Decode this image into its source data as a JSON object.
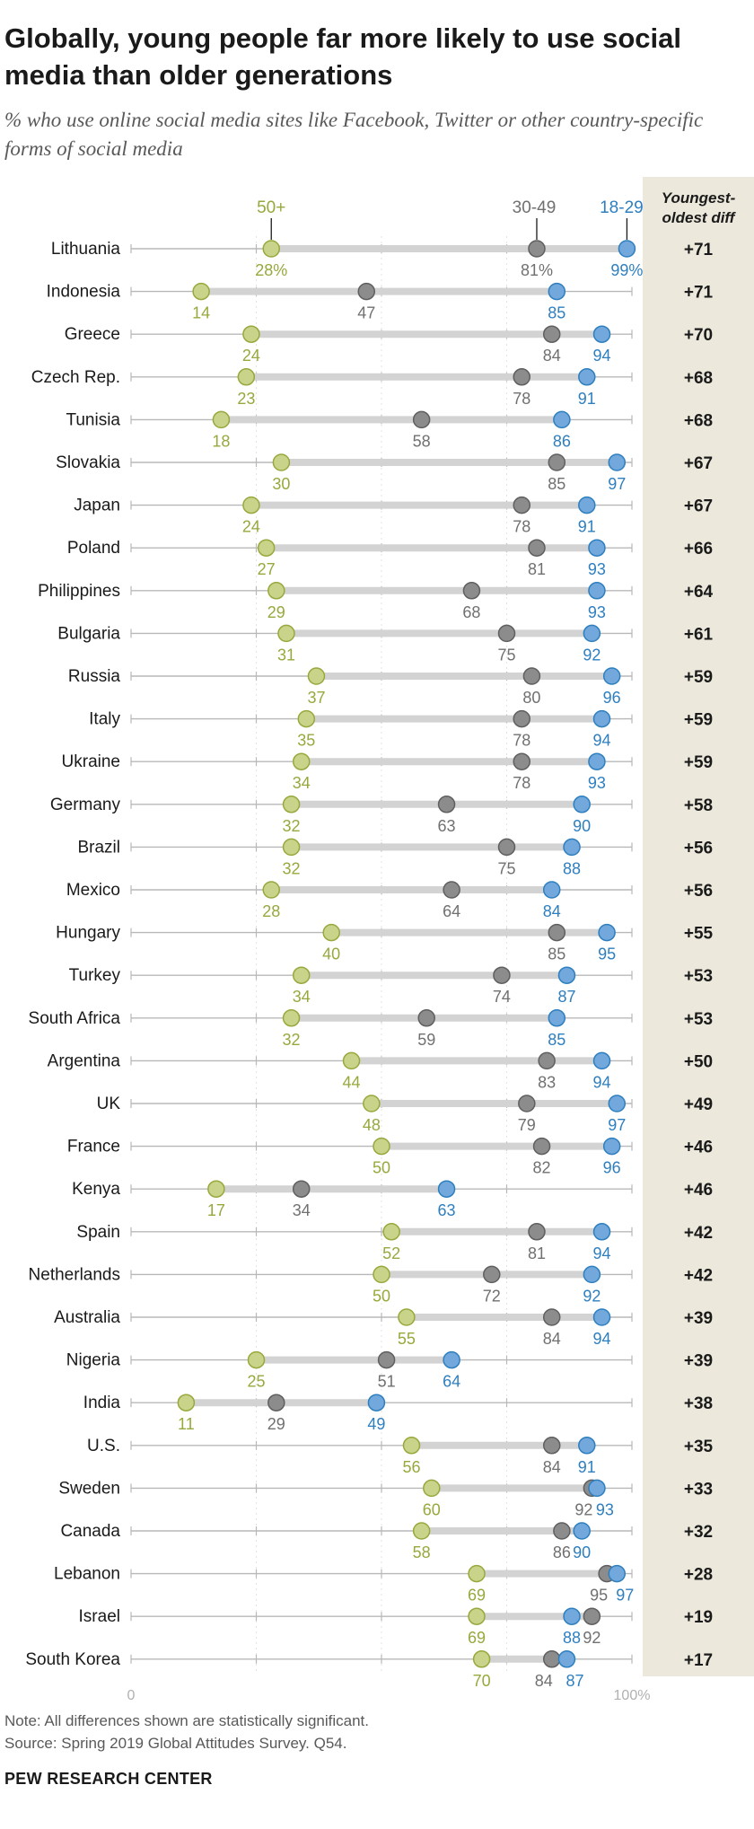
{
  "title": "Globally, young people far more likely to use social media than older generations",
  "subtitle": "% who use online social media sites like Facebook, Twitter or other country-specific forms of social media",
  "note": "Note: All differences shown are statistically significant.",
  "source": "Source: Spring 2019 Global Attitudes Survey. Q54.",
  "org": "PEW RESEARCH CENTER",
  "colors": {
    "age_50plus": "#c9d48a",
    "age_30_49": "#8c8c8c",
    "age_18_29": "#72a8dc",
    "age_50plus_text": "#98a83c",
    "age_30_49_text": "#707070",
    "age_18_29_text": "#2e7fbf",
    "diff_panel": "#ece9dc"
  },
  "chart_data": {
    "type": "dot",
    "xlim": [
      0,
      100
    ],
    "x_tick_labels": {
      "min": "0",
      "max": "100%"
    },
    "diff_header": "Youngest-oldest diff",
    "diff_header_lines": [
      "Youngest-",
      "oldest diff"
    ],
    "series": [
      {
        "name": "50+",
        "key": "age_50plus"
      },
      {
        "name": "30-49",
        "key": "age_30_49"
      },
      {
        "name": "18-29",
        "key": "age_18_29"
      }
    ],
    "first_row_value_labels": {
      "age_50plus": "28%",
      "age_30_49": "81%",
      "age_18_29": "99%"
    },
    "rows": [
      {
        "country": "Lithuania",
        "age_50plus": 28,
        "age_30_49": 81,
        "age_18_29": 99,
        "diff": "+71"
      },
      {
        "country": "Indonesia",
        "age_50plus": 14,
        "age_30_49": 47,
        "age_18_29": 85,
        "diff": "+71"
      },
      {
        "country": "Greece",
        "age_50plus": 24,
        "age_30_49": 84,
        "age_18_29": 94,
        "diff": "+70"
      },
      {
        "country": "Czech Rep.",
        "age_50plus": 23,
        "age_30_49": 78,
        "age_18_29": 91,
        "diff": "+68"
      },
      {
        "country": "Tunisia",
        "age_50plus": 18,
        "age_30_49": 58,
        "age_18_29": 86,
        "diff": "+68"
      },
      {
        "country": "Slovakia",
        "age_50plus": 30,
        "age_30_49": 85,
        "age_18_29": 97,
        "diff": "+67"
      },
      {
        "country": "Japan",
        "age_50plus": 24,
        "age_30_49": 78,
        "age_18_29": 91,
        "diff": "+67"
      },
      {
        "country": "Poland",
        "age_50plus": 27,
        "age_30_49": 81,
        "age_18_29": 93,
        "diff": "+66"
      },
      {
        "country": "Philippines",
        "age_50plus": 29,
        "age_30_49": 68,
        "age_18_29": 93,
        "diff": "+64"
      },
      {
        "country": "Bulgaria",
        "age_50plus": 31,
        "age_30_49": 75,
        "age_18_29": 92,
        "diff": "+61"
      },
      {
        "country": "Russia",
        "age_50plus": 37,
        "age_30_49": 80,
        "age_18_29": 96,
        "diff": "+59"
      },
      {
        "country": "Italy",
        "age_50plus": 35,
        "age_30_49": 78,
        "age_18_29": 94,
        "diff": "+59"
      },
      {
        "country": "Ukraine",
        "age_50plus": 34,
        "age_30_49": 78,
        "age_18_29": 93,
        "diff": "+59"
      },
      {
        "country": "Germany",
        "age_50plus": 32,
        "age_30_49": 63,
        "age_18_29": 90,
        "diff": "+58"
      },
      {
        "country": "Brazil",
        "age_50plus": 32,
        "age_30_49": 75,
        "age_18_29": 88,
        "diff": "+56"
      },
      {
        "country": "Mexico",
        "age_50plus": 28,
        "age_30_49": 64,
        "age_18_29": 84,
        "diff": "+56"
      },
      {
        "country": "Hungary",
        "age_50plus": 40,
        "age_30_49": 85,
        "age_18_29": 95,
        "diff": "+55"
      },
      {
        "country": "Turkey",
        "age_50plus": 34,
        "age_30_49": 74,
        "age_18_29": 87,
        "diff": "+53"
      },
      {
        "country": "South Africa",
        "age_50plus": 32,
        "age_30_49": 59,
        "age_18_29": 85,
        "diff": "+53"
      },
      {
        "country": "Argentina",
        "age_50plus": 44,
        "age_30_49": 83,
        "age_18_29": 94,
        "diff": "+50"
      },
      {
        "country": "UK",
        "age_50plus": 48,
        "age_30_49": 79,
        "age_18_29": 97,
        "diff": "+49"
      },
      {
        "country": "France",
        "age_50plus": 50,
        "age_30_49": 82,
        "age_18_29": 96,
        "diff": "+46"
      },
      {
        "country": "Kenya",
        "age_50plus": 17,
        "age_30_49": 34,
        "age_18_29": 63,
        "diff": "+46"
      },
      {
        "country": "Spain",
        "age_50plus": 52,
        "age_30_49": 81,
        "age_18_29": 94,
        "diff": "+42"
      },
      {
        "country": "Netherlands",
        "age_50plus": 50,
        "age_30_49": 72,
        "age_18_29": 92,
        "diff": "+42"
      },
      {
        "country": "Australia",
        "age_50plus": 55,
        "age_30_49": 84,
        "age_18_29": 94,
        "diff": "+39"
      },
      {
        "country": "Nigeria",
        "age_50plus": 25,
        "age_30_49": 51,
        "age_18_29": 64,
        "diff": "+39"
      },
      {
        "country": "India",
        "age_50plus": 11,
        "age_30_49": 29,
        "age_18_29": 49,
        "diff": "+38"
      },
      {
        "country": "U.S.",
        "age_50plus": 56,
        "age_30_49": 84,
        "age_18_29": 91,
        "diff": "+35"
      },
      {
        "country": "Sweden",
        "age_50plus": 60,
        "age_30_49": 92,
        "age_18_29": 93,
        "diff": "+33"
      },
      {
        "country": "Canada",
        "age_50plus": 58,
        "age_30_49": 86,
        "age_18_29": 90,
        "diff": "+32"
      },
      {
        "country": "Lebanon",
        "age_50plus": 69,
        "age_30_49": 95,
        "age_18_29": 97,
        "diff": "+28"
      },
      {
        "country": "Israel",
        "age_50plus": 69,
        "age_30_49": 92,
        "age_18_29": 88,
        "diff": "+19"
      },
      {
        "country": "South Korea",
        "age_50plus": 70,
        "age_30_49": 84,
        "age_18_29": 87,
        "diff": "+17"
      }
    ]
  }
}
